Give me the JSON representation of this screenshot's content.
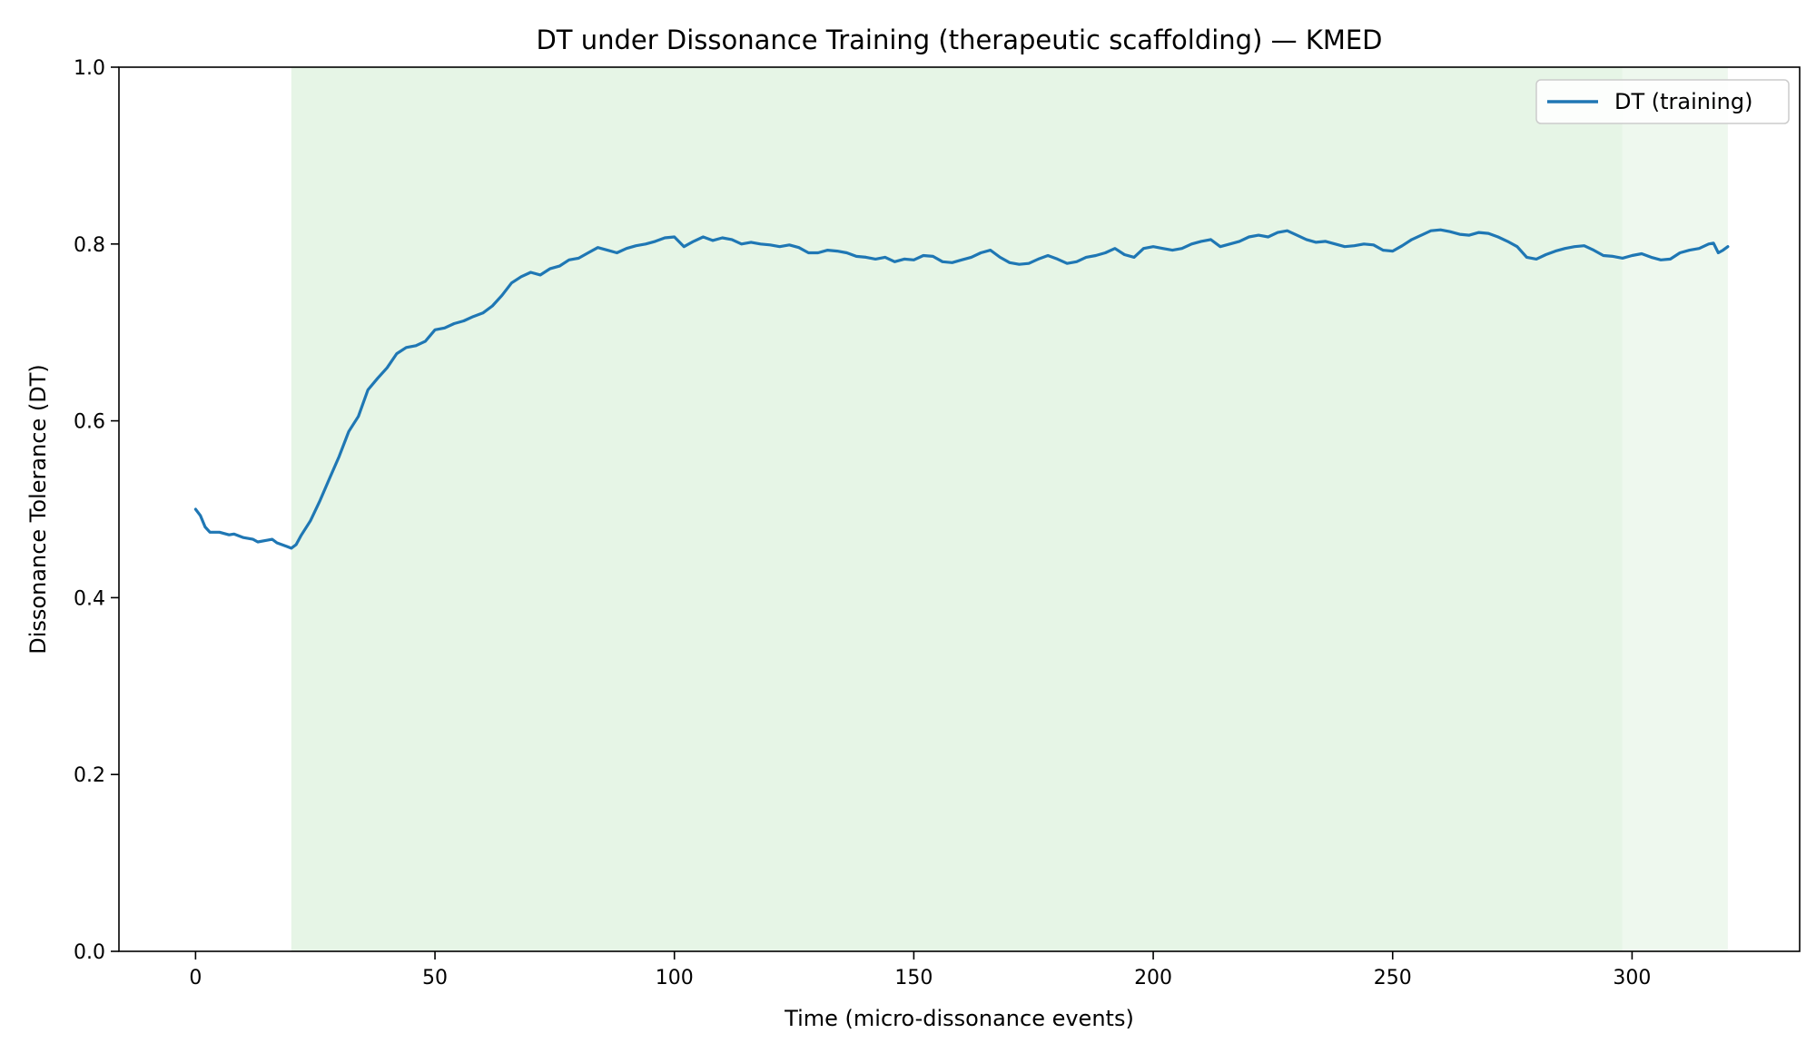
{
  "chart_data": {
    "type": "line",
    "title": "DT under Dissonance Training (therapeutic scaffolding) — KMED",
    "xlabel": "Time (micro-dissonance events)",
    "ylabel": "Dissonance Tolerance (DT)",
    "xlim": [
      -16,
      335
    ],
    "ylim": [
      0.0,
      1.0
    ],
    "xticks": [
      0,
      50,
      100,
      150,
      200,
      250,
      300
    ],
    "yticks": [
      "0.0",
      "0.2",
      "0.4",
      "0.6",
      "0.8",
      "1.0"
    ],
    "grid": false,
    "legend_position": "top-right",
    "shaded_regions": [
      {
        "x_start": 20,
        "x_end": 298,
        "color": "#e6f5e6"
      },
      {
        "x_start": 298,
        "x_end": 320,
        "color": "#eef8ee"
      }
    ],
    "series": [
      {
        "name": "DT (training)",
        "color": "#1f77b4",
        "points": [
          [
            0,
            0.5
          ],
          [
            1,
            0.493
          ],
          [
            2,
            0.48
          ],
          [
            3,
            0.474
          ],
          [
            5,
            0.474
          ],
          [
            7,
            0.471
          ],
          [
            8,
            0.472
          ],
          [
            10,
            0.468
          ],
          [
            12,
            0.466
          ],
          [
            13,
            0.463
          ],
          [
            15,
            0.465
          ],
          [
            16,
            0.466
          ],
          [
            17,
            0.462
          ],
          [
            19,
            0.458
          ],
          [
            20,
            0.456
          ],
          [
            21,
            0.46
          ],
          [
            22,
            0.47
          ],
          [
            24,
            0.487
          ],
          [
            26,
            0.51
          ],
          [
            28,
            0.535
          ],
          [
            30,
            0.56
          ],
          [
            32,
            0.588
          ],
          [
            34,
            0.605
          ],
          [
            36,
            0.635
          ],
          [
            38,
            0.648
          ],
          [
            40,
            0.66
          ],
          [
            42,
            0.676
          ],
          [
            44,
            0.683
          ],
          [
            46,
            0.685
          ],
          [
            48,
            0.69
          ],
          [
            50,
            0.703
          ],
          [
            52,
            0.705
          ],
          [
            54,
            0.71
          ],
          [
            56,
            0.713
          ],
          [
            58,
            0.718
          ],
          [
            60,
            0.722
          ],
          [
            62,
            0.73
          ],
          [
            64,
            0.742
          ],
          [
            66,
            0.756
          ],
          [
            68,
            0.763
          ],
          [
            70,
            0.768
          ],
          [
            72,
            0.765
          ],
          [
            74,
            0.772
          ],
          [
            76,
            0.775
          ],
          [
            78,
            0.782
          ],
          [
            80,
            0.784
          ],
          [
            82,
            0.79
          ],
          [
            84,
            0.796
          ],
          [
            86,
            0.793
          ],
          [
            88,
            0.79
          ],
          [
            90,
            0.795
          ],
          [
            92,
            0.798
          ],
          [
            94,
            0.8
          ],
          [
            96,
            0.803
          ],
          [
            98,
            0.807
          ],
          [
            100,
            0.808
          ],
          [
            102,
            0.797
          ],
          [
            104,
            0.803
          ],
          [
            106,
            0.808
          ],
          [
            108,
            0.804
          ],
          [
            110,
            0.807
          ],
          [
            112,
            0.805
          ],
          [
            114,
            0.8
          ],
          [
            116,
            0.802
          ],
          [
            118,
            0.8
          ],
          [
            120,
            0.799
          ],
          [
            122,
            0.797
          ],
          [
            124,
            0.799
          ],
          [
            126,
            0.796
          ],
          [
            128,
            0.79
          ],
          [
            130,
            0.79
          ],
          [
            132,
            0.793
          ],
          [
            134,
            0.792
          ],
          [
            136,
            0.79
          ],
          [
            138,
            0.786
          ],
          [
            140,
            0.785
          ],
          [
            142,
            0.783
          ],
          [
            144,
            0.785
          ],
          [
            146,
            0.78
          ],
          [
            148,
            0.783
          ],
          [
            150,
            0.782
          ],
          [
            152,
            0.787
          ],
          [
            154,
            0.786
          ],
          [
            156,
            0.78
          ],
          [
            158,
            0.779
          ],
          [
            160,
            0.782
          ],
          [
            162,
            0.785
          ],
          [
            164,
            0.79
          ],
          [
            166,
            0.793
          ],
          [
            168,
            0.785
          ],
          [
            170,
            0.779
          ],
          [
            172,
            0.777
          ],
          [
            174,
            0.778
          ],
          [
            176,
            0.783
          ],
          [
            178,
            0.787
          ],
          [
            180,
            0.783
          ],
          [
            182,
            0.778
          ],
          [
            184,
            0.78
          ],
          [
            186,
            0.785
          ],
          [
            188,
            0.787
          ],
          [
            190,
            0.79
          ],
          [
            192,
            0.795
          ],
          [
            194,
            0.788
          ],
          [
            196,
            0.785
          ],
          [
            198,
            0.795
          ],
          [
            200,
            0.797
          ],
          [
            202,
            0.795
          ],
          [
            204,
            0.793
          ],
          [
            206,
            0.795
          ],
          [
            208,
            0.8
          ],
          [
            210,
            0.803
          ],
          [
            212,
            0.805
          ],
          [
            214,
            0.797
          ],
          [
            216,
            0.8
          ],
          [
            218,
            0.803
          ],
          [
            220,
            0.808
          ],
          [
            222,
            0.81
          ],
          [
            224,
            0.808
          ],
          [
            226,
            0.813
          ],
          [
            228,
            0.815
          ],
          [
            230,
            0.81
          ],
          [
            232,
            0.805
          ],
          [
            234,
            0.802
          ],
          [
            236,
            0.803
          ],
          [
            238,
            0.8
          ],
          [
            240,
            0.797
          ],
          [
            242,
            0.798
          ],
          [
            244,
            0.8
          ],
          [
            246,
            0.799
          ],
          [
            248,
            0.793
          ],
          [
            250,
            0.792
          ],
          [
            252,
            0.798
          ],
          [
            254,
            0.805
          ],
          [
            256,
            0.81
          ],
          [
            258,
            0.815
          ],
          [
            260,
            0.816
          ],
          [
            262,
            0.814
          ],
          [
            264,
            0.811
          ],
          [
            266,
            0.81
          ],
          [
            268,
            0.813
          ],
          [
            270,
            0.812
          ],
          [
            272,
            0.808
          ],
          [
            274,
            0.803
          ],
          [
            276,
            0.797
          ],
          [
            278,
            0.785
          ],
          [
            280,
            0.783
          ],
          [
            282,
            0.788
          ],
          [
            284,
            0.792
          ],
          [
            286,
            0.795
          ],
          [
            288,
            0.797
          ],
          [
            290,
            0.798
          ],
          [
            292,
            0.793
          ],
          [
            294,
            0.787
          ],
          [
            296,
            0.786
          ],
          [
            298,
            0.784
          ],
          [
            300,
            0.787
          ],
          [
            302,
            0.789
          ],
          [
            304,
            0.785
          ],
          [
            306,
            0.782
          ],
          [
            308,
            0.783
          ],
          [
            310,
            0.79
          ],
          [
            312,
            0.793
          ],
          [
            314,
            0.795
          ],
          [
            316,
            0.8
          ],
          [
            317,
            0.801
          ],
          [
            318,
            0.79
          ],
          [
            319,
            0.793
          ],
          [
            320,
            0.797
          ]
        ]
      }
    ]
  }
}
